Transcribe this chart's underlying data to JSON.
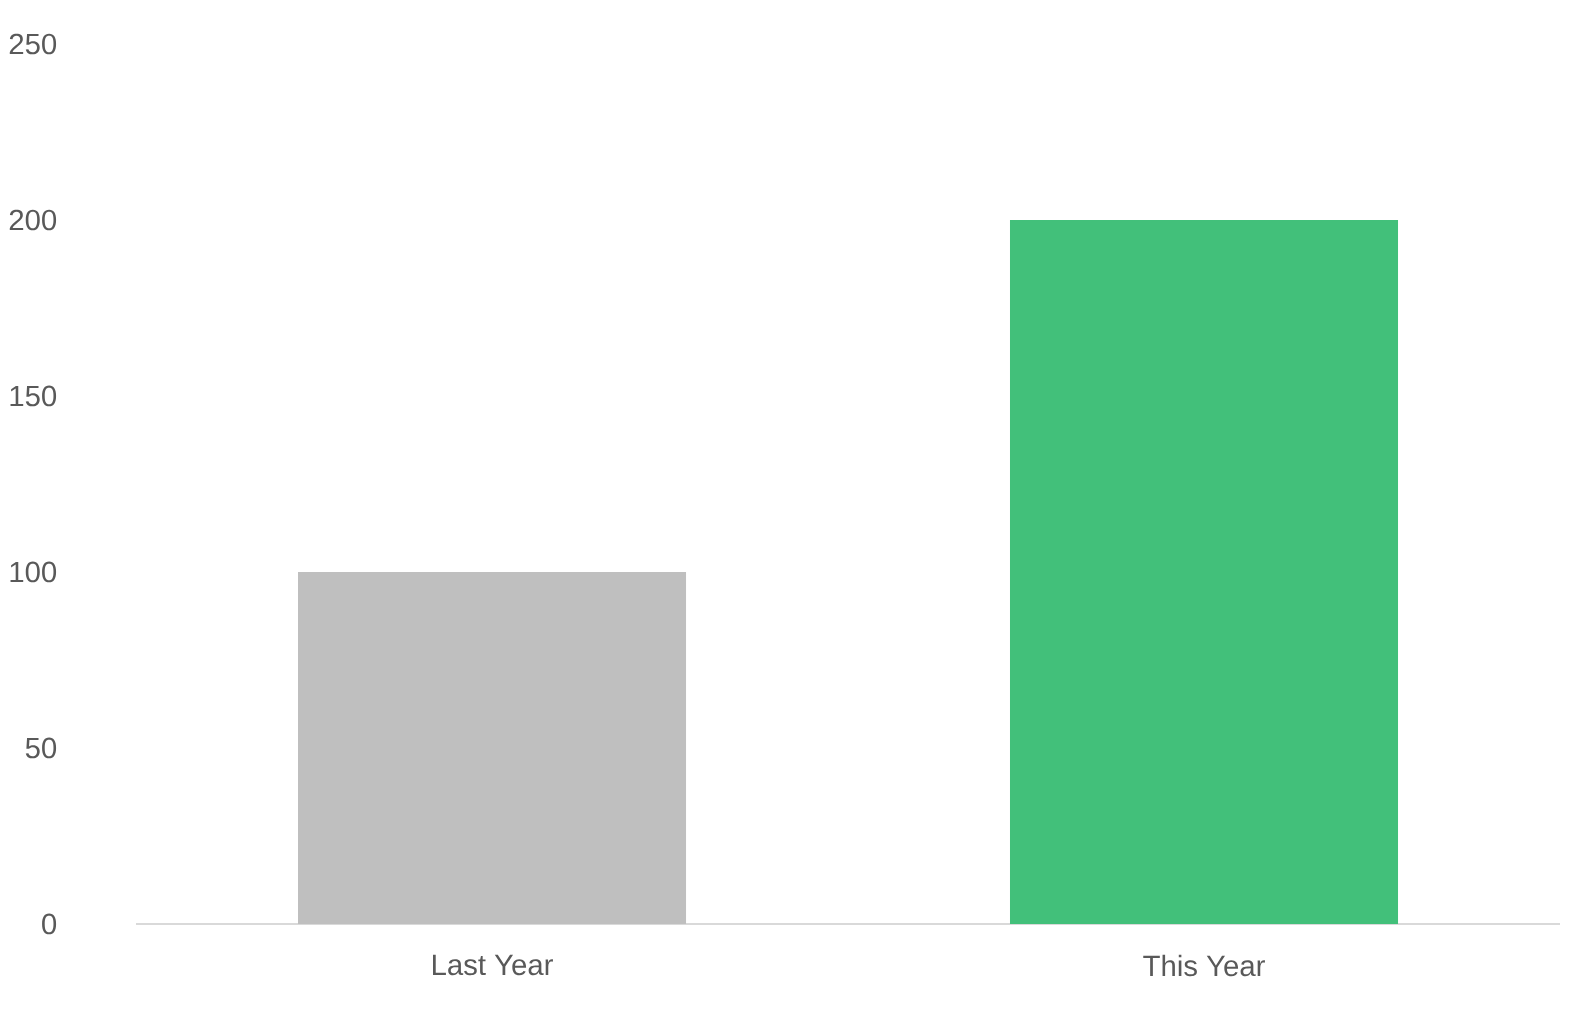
{
  "chart_data": {
    "type": "bar",
    "categories": [
      "Last Year",
      "This Year"
    ],
    "values": [
      100,
      200
    ],
    "colors": [
      "#bfbfbf",
      "#42c07a"
    ],
    "ylim": [
      0,
      250
    ],
    "yticks": [
      0,
      50,
      100,
      150,
      200,
      250
    ],
    "grid": false
  }
}
